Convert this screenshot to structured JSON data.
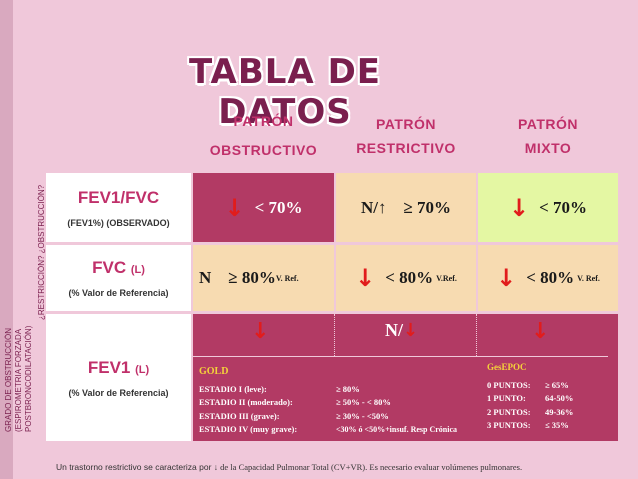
{
  "title": "TABLA DE DATOS",
  "side_labels": {
    "grado": "GRADO DE OBSTRUCCIÓN\n(ESPIROMETRIA FORZADA\nPOSTBRONCODILATACIÓN)",
    "pregunta": "¿RESTRICCIÓN? ¿OBSTRUCCIÓN?"
  },
  "headers": {
    "obstructivo": [
      "PATRÓN",
      "OBSTRUCTIVO"
    ],
    "restrictivo": [
      "PATRÓN",
      "RESTRICTIVO"
    ],
    "mixto": [
      "PATRÓN",
      "MIXTO"
    ]
  },
  "rows": {
    "fev1fvc": {
      "label": "FEV1/FVC",
      "sub": "(FEV1%) (OBSERVADO)",
      "obstructivo_arrow": "↓",
      "obstructivo": "< 70%",
      "restrictivo": "N/↑    ≥ 70%",
      "mixto_arrow": "↓",
      "mixto": "< 70%"
    },
    "fvc": {
      "label": "FVC",
      "unit": "(L)",
      "sub": "(% Valor de Referencia)",
      "obstructivo": "N    ≥ 80%",
      "obstructivo_ref": "V. Ref.",
      "restrictivo_arrow": "↓",
      "restrictivo": "< 80%",
      "restrictivo_ref": "V.Ref.",
      "mixto_arrow": "↓",
      "mixto": "< 80%",
      "mixto_ref": "V. Ref."
    },
    "fev1": {
      "label": "FEV1",
      "unit": "(L)",
      "sub": "(% Valor de Referencia)",
      "obstructivo_arrow": "↓",
      "restrictivo": "N/",
      "restrictivo_arrow": "↓",
      "mixto_arrow": "↓"
    }
  },
  "gold": {
    "title": "GOLD",
    "rows": [
      {
        "k": "ESTADIO I (leve):",
        "v": "≥ 80%"
      },
      {
        "k": "ESTADIO  II (moderado):",
        "v": "≥ 50% - < 80%"
      },
      {
        "k": "ESTADIO  III (grave):",
        "v": "≥ 30% - <50%"
      },
      {
        "k": "ESTADIO  IV (muy grave):",
        "v": "<30% ó <50%+insuf. Resp Crónica"
      }
    ]
  },
  "gesepoc": {
    "title": "GesEPOC",
    "rows": [
      {
        "k": "0 PUNTOS:",
        "v": "≥ 65%"
      },
      {
        "k": "1 PUNTO:",
        "v": "64-50%"
      },
      {
        "k": "2 PUNTOS:",
        "v": "49-36%"
      },
      {
        "k": "3 PUNTOS:",
        "v": "≤ 35%"
      }
    ]
  },
  "footnote": {
    "a": "Un trastorno restrictivo se caracteriza por ",
    "arrow": "↓",
    "b": " de la Capacidad Pulmonar Total (CV+VR). Es necesario evaluar volúmenes pulmonares."
  }
}
